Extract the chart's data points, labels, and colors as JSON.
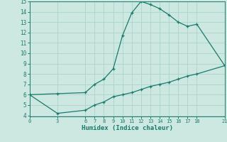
{
  "upper_x": [
    0,
    3,
    6,
    7,
    8,
    9,
    10,
    11,
    12,
    13,
    14,
    15,
    16,
    17,
    18,
    21
  ],
  "upper_y": [
    6.0,
    6.1,
    6.2,
    7.0,
    7.5,
    8.5,
    11.7,
    13.9,
    15.0,
    14.7,
    14.3,
    13.7,
    13.0,
    12.6,
    12.8,
    8.8
  ],
  "lower_x": [
    0,
    3,
    6,
    7,
    8,
    9,
    10,
    11,
    12,
    13,
    14,
    15,
    16,
    17,
    18,
    21
  ],
  "lower_y": [
    6.0,
    4.2,
    4.5,
    5.0,
    5.3,
    5.8,
    6.0,
    6.2,
    6.5,
    6.8,
    7.0,
    7.2,
    7.5,
    7.8,
    8.0,
    8.8
  ],
  "line_color": "#1a7a6e",
  "bg_color": "#cce8e0",
  "grid_color": "#aad4cc",
  "xlabel": "Humidex (Indice chaleur)",
  "xlim": [
    0,
    21
  ],
  "ylim": [
    4,
    15
  ],
  "xticks": [
    0,
    3,
    6,
    7,
    8,
    9,
    10,
    11,
    12,
    13,
    14,
    15,
    16,
    17,
    18,
    21
  ],
  "yticks": [
    4,
    5,
    6,
    7,
    8,
    9,
    10,
    11,
    12,
    13,
    14,
    15
  ]
}
